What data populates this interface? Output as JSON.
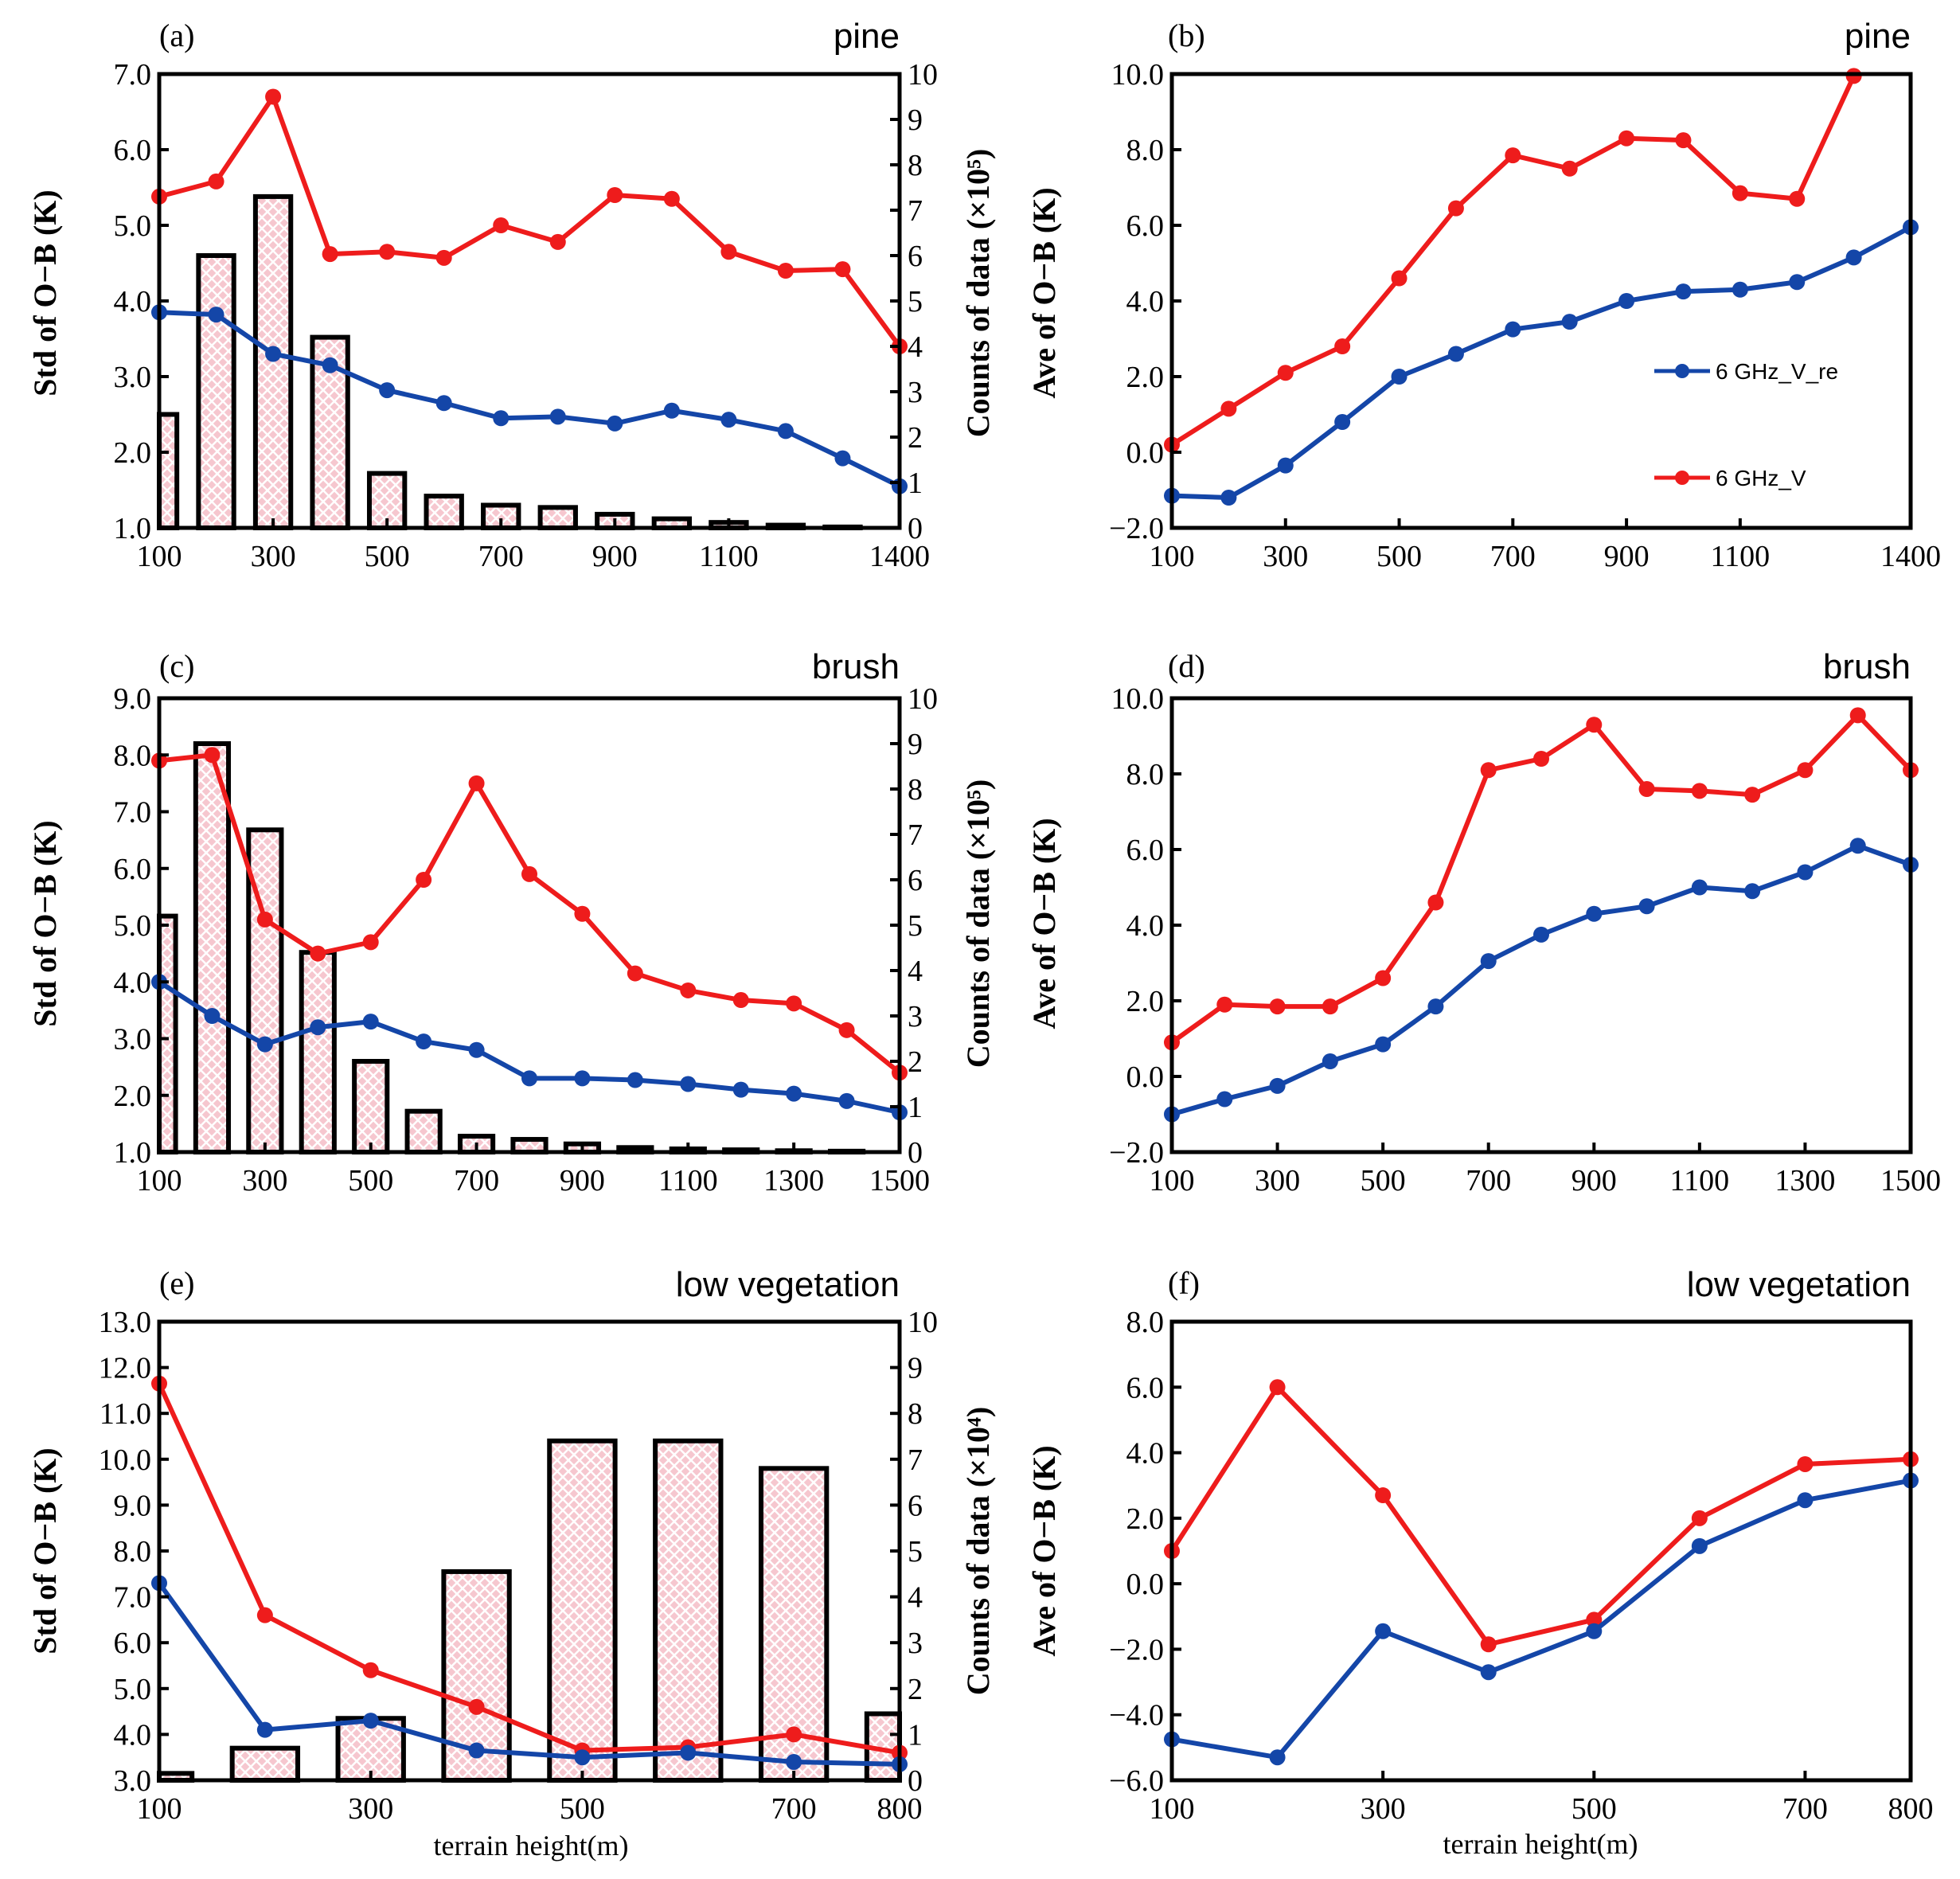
{
  "colors": {
    "red": "#ee1c1c",
    "blue": "#1446a8",
    "bar_fill": "#f6c7cf",
    "hatch": "#ffffff"
  },
  "legend": {
    "blue_label": "6 GHz_V_re",
    "red_label": "6 GHz_V"
  },
  "chart_data": [
    {
      "id": "a",
      "panel_label": "(a)",
      "title": "pine",
      "type": "line+bar",
      "xlabel": "",
      "xlim": [
        100,
        1400
      ],
      "xticks": [
        "100",
        "300",
        "500",
        "700",
        "900",
        "1100",
        "1400"
      ],
      "ylabel": "Std of O−B (K)",
      "ylim": [
        1.0,
        7.0
      ],
      "yticks": [
        "1.0",
        "2.0",
        "3.0",
        "4.0",
        "5.0",
        "6.0",
        "7.0"
      ],
      "y2label": "Counts of data (×10⁵)",
      "y2lim": [
        0,
        10
      ],
      "y2ticks": [
        "0",
        "1",
        "2",
        "3",
        "4",
        "5",
        "6",
        "7",
        "8",
        "9",
        "10"
      ],
      "bars": {
        "x": [
          100,
          200,
          300,
          400,
          500,
          600,
          700,
          800,
          900,
          1000,
          1100,
          1200,
          1300
        ],
        "values": [
          2.5,
          6.0,
          7.3,
          4.2,
          1.2,
          0.7,
          0.5,
          0.45,
          0.3,
          0.2,
          0.12,
          0.06,
          0.02
        ]
      },
      "series": [
        {
          "name": "6 GHz_V",
          "color": "red",
          "x": [
            100,
            200,
            300,
            400,
            500,
            600,
            700,
            800,
            900,
            1000,
            1100,
            1200,
            1300,
            1400
          ],
          "values": [
            5.38,
            5.58,
            6.7,
            4.62,
            4.65,
            4.57,
            5.0,
            4.78,
            5.4,
            5.35,
            4.65,
            4.4,
            4.42,
            3.4
          ]
        },
        {
          "name": "6 GHz_V_re",
          "color": "blue",
          "x": [
            100,
            200,
            300,
            400,
            500,
            600,
            700,
            800,
            900,
            1000,
            1100,
            1200,
            1300,
            1400
          ],
          "values": [
            3.85,
            3.82,
            3.3,
            3.15,
            2.82,
            2.65,
            2.45,
            2.47,
            2.38,
            2.55,
            2.43,
            2.28,
            1.92,
            1.55
          ]
        }
      ]
    },
    {
      "id": "b",
      "panel_label": "(b)",
      "title": "pine",
      "type": "line",
      "xlabel": "",
      "xlim": [
        100,
        1400
      ],
      "xticks": [
        "100",
        "300",
        "500",
        "700",
        "900",
        "1100",
        "1400"
      ],
      "ylabel": "Ave of O−B (K)",
      "ylim": [
        -2.0,
        10.0
      ],
      "yticks": [
        "−2.0",
        "0.0",
        "2.0",
        "4.0",
        "6.0",
        "8.0",
        "10.0"
      ],
      "series": [
        {
          "name": "6 GHz_V",
          "color": "red",
          "x": [
            100,
            200,
            300,
            400,
            500,
            600,
            700,
            800,
            900,
            1000,
            1100,
            1200,
            1300
          ],
          "values": [
            0.2,
            1.15,
            2.1,
            2.8,
            4.6,
            6.45,
            7.85,
            7.5,
            8.3,
            8.25,
            6.85,
            6.7,
            9.95
          ]
        },
        {
          "name": "6 GHz_V_re",
          "color": "blue",
          "x": [
            100,
            200,
            300,
            400,
            500,
            600,
            700,
            800,
            900,
            1000,
            1100,
            1200,
            1300,
            1400
          ],
          "values": [
            -1.15,
            -1.2,
            -0.35,
            0.8,
            2.0,
            2.6,
            3.25,
            3.45,
            4.0,
            4.25,
            4.3,
            4.5,
            5.15,
            5.95
          ]
        }
      ],
      "legend_position": "right"
    },
    {
      "id": "c",
      "panel_label": "(c)",
      "title": "brush",
      "type": "line+bar",
      "xlabel": "",
      "xlim": [
        100,
        1500
      ],
      "xticks": [
        "100",
        "300",
        "500",
        "700",
        "900",
        "1100",
        "1300",
        "1500"
      ],
      "ylabel": "Std of O−B (K)",
      "ylim": [
        1.0,
        9.0
      ],
      "yticks": [
        "1.0",
        "2.0",
        "3.0",
        "4.0",
        "5.0",
        "6.0",
        "7.0",
        "8.0",
        "9.0"
      ],
      "y2label": "Counts of data (×10⁵)",
      "y2lim": [
        0,
        10
      ],
      "y2ticks": [
        "0",
        "1",
        "2",
        "3",
        "4",
        "5",
        "6",
        "7",
        "8",
        "9",
        "10"
      ],
      "bars": {
        "x": [
          100,
          200,
          300,
          400,
          500,
          600,
          700,
          800,
          900,
          1000,
          1100,
          1200,
          1300,
          1400
        ],
        "values": [
          5.2,
          9.0,
          7.1,
          4.4,
          2.0,
          0.9,
          0.35,
          0.28,
          0.18,
          0.1,
          0.07,
          0.05,
          0.03,
          0.02
        ]
      },
      "series": [
        {
          "name": "6 GHz_V",
          "color": "red",
          "x": [
            100,
            200,
            300,
            400,
            500,
            600,
            700,
            800,
            900,
            1000,
            1100,
            1200,
            1300,
            1400,
            1500
          ],
          "values": [
            7.9,
            8.0,
            5.1,
            4.5,
            4.7,
            5.8,
            7.5,
            5.9,
            5.2,
            4.15,
            3.85,
            3.68,
            3.62,
            3.15,
            2.4
          ]
        },
        {
          "name": "6 GHz_V_re",
          "color": "blue",
          "x": [
            100,
            200,
            300,
            400,
            500,
            600,
            700,
            800,
            900,
            1000,
            1100,
            1200,
            1300,
            1400,
            1500
          ],
          "values": [
            4.0,
            3.4,
            2.9,
            3.2,
            3.3,
            2.95,
            2.8,
            2.3,
            2.3,
            2.27,
            2.2,
            2.1,
            2.03,
            1.9,
            1.7
          ]
        }
      ]
    },
    {
      "id": "d",
      "panel_label": "(d)",
      "title": "brush",
      "type": "line",
      "xlabel": "",
      "xlim": [
        100,
        1500
      ],
      "xticks": [
        "100",
        "300",
        "500",
        "700",
        "900",
        "1100",
        "1300",
        "1500"
      ],
      "ylabel": "Ave of O−B (K)",
      "ylim": [
        -2.0,
        10.0
      ],
      "yticks": [
        "−2.0",
        "0.0",
        "2.0",
        "4.0",
        "6.0",
        "8.0",
        "10.0"
      ],
      "series": [
        {
          "name": "6 GHz_V",
          "color": "red",
          "x": [
            100,
            200,
            300,
            400,
            500,
            600,
            700,
            800,
            900,
            1000,
            1100,
            1200,
            1300,
            1400,
            1500
          ],
          "values": [
            0.9,
            1.9,
            1.85,
            1.85,
            2.6,
            4.6,
            8.1,
            8.4,
            9.3,
            7.6,
            7.55,
            7.45,
            8.1,
            9.55,
            8.1
          ]
        },
        {
          "name": "6 GHz_V_re",
          "color": "blue",
          "x": [
            100,
            200,
            300,
            400,
            500,
            600,
            700,
            800,
            900,
            1000,
            1100,
            1200,
            1300,
            1400,
            1500
          ],
          "values": [
            -1.0,
            -0.6,
            -0.25,
            0.4,
            0.85,
            1.85,
            3.05,
            3.75,
            4.3,
            4.5,
            5.0,
            4.9,
            5.4,
            6.1,
            5.6
          ]
        }
      ]
    },
    {
      "id": "e",
      "panel_label": "(e)",
      "title": "low vegetation",
      "type": "line+bar",
      "xlabel": "terrain height(m)",
      "xlim": [
        100,
        800
      ],
      "xticks": [
        "100",
        "300",
        "500",
        "700",
        "800"
      ],
      "xtick_values": [
        100,
        300,
        500,
        700,
        800
      ],
      "ylabel": "Std of O−B (K)",
      "ylim": [
        3.0,
        13.0
      ],
      "yticks": [
        "3.0",
        "4.0",
        "5.0",
        "6.0",
        "7.0",
        "8.0",
        "9.0",
        "10.0",
        "11.0",
        "12.0",
        "13.0"
      ],
      "y2label": "Counts of data (×10⁴)",
      "y2lim": [
        0,
        10
      ],
      "y2ticks": [
        "0",
        "1",
        "2",
        "3",
        "4",
        "5",
        "6",
        "7",
        "8",
        "9",
        "10"
      ],
      "bars": {
        "x": [
          100,
          200,
          300,
          400,
          500,
          600,
          700,
          800
        ],
        "values": [
          0.15,
          0.7,
          1.35,
          4.55,
          7.4,
          7.4,
          6.8,
          1.45
        ]
      },
      "series": [
        {
          "name": "6 GHz_V",
          "color": "red",
          "x": [
            100,
            200,
            300,
            400,
            500,
            600,
            700,
            800
          ],
          "values": [
            11.65,
            6.6,
            5.4,
            4.6,
            3.65,
            3.72,
            4.0,
            3.6
          ]
        },
        {
          "name": "6 GHz_V_re",
          "color": "blue",
          "x": [
            100,
            200,
            300,
            400,
            500,
            600,
            700,
            800
          ],
          "values": [
            7.3,
            4.1,
            4.3,
            3.65,
            3.5,
            3.6,
            3.4,
            3.35
          ]
        }
      ]
    },
    {
      "id": "f",
      "panel_label": "(f)",
      "title": "low vegetation",
      "type": "line",
      "xlabel": "terrain height(m)",
      "xlim": [
        100,
        800
      ],
      "xticks": [
        "100",
        "300",
        "500",
        "700",
        "800"
      ],
      "xtick_values": [
        100,
        300,
        500,
        700,
        800
      ],
      "ylabel": "Ave of O−B (K)",
      "ylim": [
        -6.0,
        8.0
      ],
      "yticks": [
        "−6.0",
        "−4.0",
        "−2.0",
        "0.0",
        "2.0",
        "4.0",
        "6.0",
        "8.0"
      ],
      "series": [
        {
          "name": "6 GHz_V",
          "color": "red",
          "x": [
            100,
            200,
            300,
            400,
            500,
            600,
            700,
            800
          ],
          "values": [
            1.0,
            6.0,
            2.7,
            -1.85,
            -1.1,
            2.0,
            3.65,
            3.8
          ]
        },
        {
          "name": "6 GHz_V_re",
          "color": "blue",
          "x": [
            100,
            200,
            300,
            400,
            500,
            600,
            700,
            800
          ],
          "values": [
            -4.75,
            -5.3,
            -1.45,
            -2.7,
            -1.45,
            1.15,
            2.55,
            3.15
          ]
        }
      ]
    }
  ]
}
